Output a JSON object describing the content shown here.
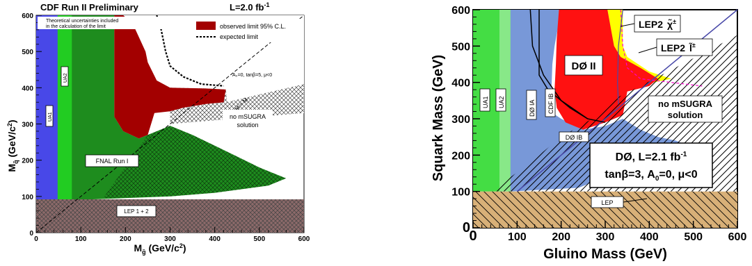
{
  "chart_data": [
    {
      "type": "area",
      "title": "CDF Run II Preliminary",
      "luminosity": "L=2.0 fb",
      "luminosity_exp": "-1",
      "xlabel_main": "M",
      "xlabel_sub": "g̃",
      "xlabel_unit": " (GeV/c",
      "xlabel_unit_exp": "2",
      "xlabel_close": ")",
      "ylabel_main": "M",
      "ylabel_sub": "q̃",
      "ylabel_unit": " (GeV/c",
      "ylabel_unit_exp": "2",
      "ylabel_close": ")",
      "xlim": [
        0,
        600
      ],
      "ylim": [
        0,
        600
      ],
      "xticks": [
        "0",
        "100",
        "200",
        "300",
        "400",
        "500",
        "600"
      ],
      "yticks": [
        "0",
        "100",
        "200",
        "300",
        "400",
        "500",
        "600"
      ],
      "note": [
        "Theoretical uncertainties included",
        "in the calculation of the limit"
      ],
      "legend": [
        {
          "label": "observed limit 95% C.L.",
          "color": "#a30000",
          "style": "fill"
        },
        {
          "label": "expected limit",
          "color": "#000000",
          "style": "dashed"
        }
      ],
      "params": "A₀=0, tanβ=5, μ<0",
      "diagonal_label": "Mₑ = Mₑ",
      "diagonal_label_text": "M  = M",
      "regions": [
        {
          "name": "UA1",
          "color": "#4848e8",
          "label": "UA1"
        },
        {
          "name": "UA2",
          "color": "#22cc22",
          "label": "UA2"
        },
        {
          "name": "FNAL Run I",
          "color": "#1e8c1e",
          "label": "FNAL Run I"
        },
        {
          "name": "LEP 1 + 2",
          "color": "#8c6a6a",
          "label": "LEP 1 + 2"
        },
        {
          "name": "no mSUGRA solution",
          "label_line1": "no mSUGRA",
          "label_line2": "solution"
        }
      ],
      "observed_limit": {
        "x": [
          175,
          175,
          195,
          230,
          250,
          265,
          300,
          330,
          380,
          420,
          425,
          380,
          300,
          270,
          250,
          245,
          230,
          215,
          195,
          175
        ],
        "y": [
          600,
          320,
          280,
          260,
          270,
          330,
          335,
          345,
          355,
          360,
          395,
          398,
          400,
          420,
          470,
          500,
          540,
          580,
          600,
          600
        ]
      }
    },
    {
      "type": "area",
      "xlabel": "Gluino Mass (GeV)",
      "ylabel": "Squark Mass (GeV)",
      "xlim": [
        0,
        600
      ],
      "ylim": [
        0,
        600
      ],
      "xticks": [
        "0",
        "100",
        "200",
        "300",
        "400",
        "500",
        "600"
      ],
      "yticks": [
        "0",
        "100",
        "200",
        "300",
        "400",
        "500",
        "600"
      ],
      "labels": {
        "ua1": "UA1",
        "ua2": "UA2",
        "d0ia": "DØ IA",
        "cdfib": "CDF IB",
        "d0ib": "DØ IB",
        "d0ii": "DØ II",
        "lep": "LEP",
        "lep2_chi": "LEP2",
        "lep2_chi_sym": "χ̃",
        "lep2_chi_sup": "±",
        "lep2_l": "LEP2",
        "lep2_l_sym": "l̃",
        "lep2_l_sup": "±",
        "nosolution_line1": "no mSUGRA",
        "nosolution_line2": "solution"
      },
      "info": {
        "line1": "DØ, L=2.1 fb",
        "line1_exp": "-1",
        "line2_a": "tanβ=3, A",
        "line2_sub": "0",
        "line2_b": "=0, μ<0"
      },
      "colors": {
        "ua1": "#44dd44",
        "ua2": "#88e888",
        "d0ia": "#7898d8",
        "d0ii": "#ff1111",
        "yellow": "#ffff00",
        "lep": "#d8b078"
      }
    }
  ]
}
